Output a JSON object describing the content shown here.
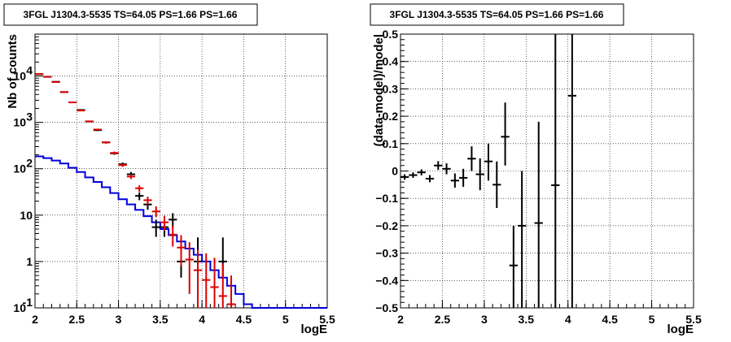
{
  "chart_data": [
    {
      "type": "step-histogram",
      "title": "3FGL J1304.3-5535 TS=64.05 PS=1.66 PS=1.66",
      "xlabel": "logE",
      "ylabel": "Nb of counts",
      "xlim": [
        2,
        5.5
      ],
      "ylim": [
        0.1,
        80000
      ],
      "yscale": "log",
      "grid": true,
      "x_ticks": [
        "2",
        "2.5",
        "3",
        "3.5",
        "4",
        "4.5",
        "5",
        "5.5"
      ],
      "y_ticks": [
        {
          "v": 0.1,
          "base": "10",
          "exp": "-1"
        },
        {
          "v": 1,
          "base": "1",
          "exp": ""
        },
        {
          "v": 10,
          "base": "10",
          "exp": ""
        },
        {
          "v": 100,
          "base": "10",
          "exp": "2"
        },
        {
          "v": 1000,
          "base": "10",
          "exp": "3"
        },
        {
          "v": 10000,
          "base": "10",
          "exp": "4"
        }
      ],
      "bin_edges": [
        2.0,
        2.1,
        2.2,
        2.3,
        2.4,
        2.5,
        2.6,
        2.7,
        2.8,
        2.9,
        3.0,
        3.1,
        3.2,
        3.3,
        3.4,
        3.5,
        3.6,
        3.7,
        3.8,
        3.9,
        4.0,
        4.1,
        4.2,
        4.3,
        4.4,
        4.5,
        4.6,
        4.7,
        4.8,
        4.9,
        5.0,
        5.1,
        5.2,
        5.3,
        5.4,
        5.5
      ],
      "series": [
        {
          "kind": "step",
          "color": "#0000dd",
          "values": [
            185,
            170,
            150,
            130,
            105,
            85,
            65,
            52,
            40,
            30,
            22,
            17,
            13,
            9.5,
            7,
            5,
            3.7,
            2.7,
            1.9,
            1.4,
            1.0,
            0.65,
            0.45,
            0.3,
            0.2,
            0.12,
            0.1,
            0.1,
            0.1,
            0.1,
            0.1,
            0.1,
            0.1,
            0.1,
            0.1
          ]
        },
        {
          "kind": "errorbars",
          "color": "#000000",
          "points": [
            {
              "x": 2.05,
              "y": 11000,
              "lo": 10800,
              "hi": 11200
            },
            {
              "x": 2.15,
              "y": 9600,
              "lo": 9400,
              "hi": 9800
            },
            {
              "x": 2.25,
              "y": 7500,
              "lo": 7350,
              "hi": 7650
            },
            {
              "x": 2.35,
              "y": 4500,
              "lo": 4400,
              "hi": 4600
            },
            {
              "x": 2.45,
              "y": 2700,
              "lo": 2620,
              "hi": 2780
            },
            {
              "x": 2.55,
              "y": 1850,
              "lo": 1790,
              "hi": 1910
            },
            {
              "x": 2.65,
              "y": 1050,
              "lo": 1010,
              "hi": 1090
            },
            {
              "x": 2.75,
              "y": 680,
              "lo": 650,
              "hi": 710
            },
            {
              "x": 2.85,
              "y": 370,
              "lo": 350,
              "hi": 390
            },
            {
              "x": 2.95,
              "y": 215,
              "lo": 200,
              "hi": 230
            },
            {
              "x": 3.05,
              "y": 125,
              "lo": 114,
              "hi": 136
            },
            {
              "x": 3.15,
              "y": 76,
              "lo": 67,
              "hi": 85
            },
            {
              "x": 3.25,
              "y": 26,
              "lo": 21,
              "hi": 31
            },
            {
              "x": 3.35,
              "y": 17,
              "lo": 13,
              "hi": 21
            },
            {
              "x": 3.45,
              "y": 5.5,
              "lo": 3.4,
              "hi": 8
            },
            {
              "x": 3.55,
              "y": 5.5,
              "lo": 3.4,
              "hi": 8
            },
            {
              "x": 3.65,
              "y": 8,
              "lo": 5.3,
              "hi": 11
            },
            {
              "x": 3.75,
              "y": 1,
              "lo": 0.45,
              "hi": 3.3
            },
            {
              "x": 3.95,
              "y": 1,
              "lo": 0.45,
              "hi": 3.3
            },
            {
              "x": 4.25,
              "y": 1,
              "lo": 0.45,
              "hi": 3.3
            }
          ]
        },
        {
          "kind": "errorbars",
          "color": "#dd0000",
          "points": [
            {
              "x": 2.05,
              "y": 11000,
              "lo": 10800,
              "hi": 11200
            },
            {
              "x": 2.15,
              "y": 9600,
              "lo": 9400,
              "hi": 9800
            },
            {
              "x": 2.25,
              "y": 7400,
              "lo": 7250,
              "hi": 7550
            },
            {
              "x": 2.35,
              "y": 4500,
              "lo": 4400,
              "hi": 4600
            },
            {
              "x": 2.45,
              "y": 2700,
              "lo": 2620,
              "hi": 2780
            },
            {
              "x": 2.55,
              "y": 1800,
              "lo": 1740,
              "hi": 1860
            },
            {
              "x": 2.65,
              "y": 1050,
              "lo": 1010,
              "hi": 1090
            },
            {
              "x": 2.75,
              "y": 700,
              "lo": 670,
              "hi": 730
            },
            {
              "x": 2.85,
              "y": 370,
              "lo": 350,
              "hi": 390
            },
            {
              "x": 2.95,
              "y": 220,
              "lo": 205,
              "hi": 235
            },
            {
              "x": 3.05,
              "y": 120,
              "lo": 110,
              "hi": 130
            },
            {
              "x": 3.15,
              "y": 68,
              "lo": 60,
              "hi": 76
            },
            {
              "x": 3.25,
              "y": 38,
              "lo": 32,
              "hi": 44
            },
            {
              "x": 3.35,
              "y": 21,
              "lo": 17,
              "hi": 25
            },
            {
              "x": 3.45,
              "y": 12,
              "lo": 9,
              "hi": 15.5
            },
            {
              "x": 3.55,
              "y": 7,
              "lo": 4.6,
              "hi": 9.7
            },
            {
              "x": 3.65,
              "y": 3.8,
              "lo": 2.1,
              "hi": 6
            },
            {
              "x": 3.75,
              "y": 2,
              "lo": 0.8,
              "hi": 3.7
            },
            {
              "x": 3.85,
              "y": 1.1,
              "lo": 0.2,
              "hi": 2.6
            },
            {
              "x": 3.95,
              "y": 0.65,
              "lo": 0.1,
              "hi": 1.8
            },
            {
              "x": 4.05,
              "y": 0.4,
              "lo": 0.1,
              "hi": 1.5
            },
            {
              "x": 4.15,
              "y": 0.28,
              "lo": 0.1,
              "hi": 1.2
            },
            {
              "x": 4.25,
              "y": 0.18,
              "lo": 0.1,
              "hi": 0.9
            },
            {
              "x": 4.35,
              "y": 0.12,
              "lo": 0.1,
              "hi": 0.5
            }
          ]
        }
      ]
    },
    {
      "type": "scatter-errorbars",
      "title": "3FGL J1304.3-5535 TS=64.05 PS=1.66 PS=1.66",
      "xlabel": "logE",
      "ylabel": "(data-model)/model",
      "xlim": [
        2,
        5.5
      ],
      "ylim": [
        -0.5,
        0.5
      ],
      "grid": true,
      "x_ticks": [
        "2",
        "2.5",
        "3",
        "3.5",
        "4",
        "4.5",
        "5",
        "5.5"
      ],
      "y_ticks": [
        "-0.5",
        "-0.4",
        "-0.3",
        "-0.2",
        "-0.1",
        "0",
        "0.1",
        "0.2",
        "0.3",
        "0.4",
        "0.5"
      ],
      "color": "#000000",
      "points": [
        {
          "x": 2.05,
          "y": -0.022,
          "lo": -0.032,
          "hi": -0.012
        },
        {
          "x": 2.15,
          "y": -0.015,
          "lo": -0.025,
          "hi": -0.005
        },
        {
          "x": 2.25,
          "y": -0.005,
          "lo": -0.016,
          "hi": 0.006
        },
        {
          "x": 2.35,
          "y": -0.028,
          "lo": -0.041,
          "hi": -0.015
        },
        {
          "x": 2.45,
          "y": 0.02,
          "lo": 0.004,
          "hi": 0.036
        },
        {
          "x": 2.55,
          "y": 0.008,
          "lo": -0.012,
          "hi": 0.028
        },
        {
          "x": 2.65,
          "y": -0.035,
          "lo": -0.061,
          "hi": -0.009
        },
        {
          "x": 2.75,
          "y": -0.025,
          "lo": -0.058,
          "hi": 0.008
        },
        {
          "x": 2.85,
          "y": 0.045,
          "lo": 0.0,
          "hi": 0.09
        },
        {
          "x": 2.95,
          "y": -0.012,
          "lo": -0.07,
          "hi": 0.046
        },
        {
          "x": 3.05,
          "y": 0.035,
          "lo": -0.035,
          "hi": 0.1
        },
        {
          "x": 3.15,
          "y": -0.05,
          "lo": -0.135,
          "hi": 0.035
        },
        {
          "x": 3.25,
          "y": 0.125,
          "lo": 0.02,
          "hi": 0.25
        },
        {
          "x": 3.35,
          "y": -0.345,
          "lo": -0.5,
          "hi": -0.2
        },
        {
          "x": 3.45,
          "y": -0.2,
          "lo": -0.5,
          "hi": 0.0
        },
        {
          "x": 3.65,
          "y": -0.19,
          "lo": -0.5,
          "hi": 0.18
        },
        {
          "x": 3.85,
          "y": -0.052,
          "lo": -0.5,
          "hi": 0.5
        },
        {
          "x": 4.05,
          "y": 0.275,
          "lo": -0.5,
          "hi": 0.5
        }
      ]
    }
  ]
}
